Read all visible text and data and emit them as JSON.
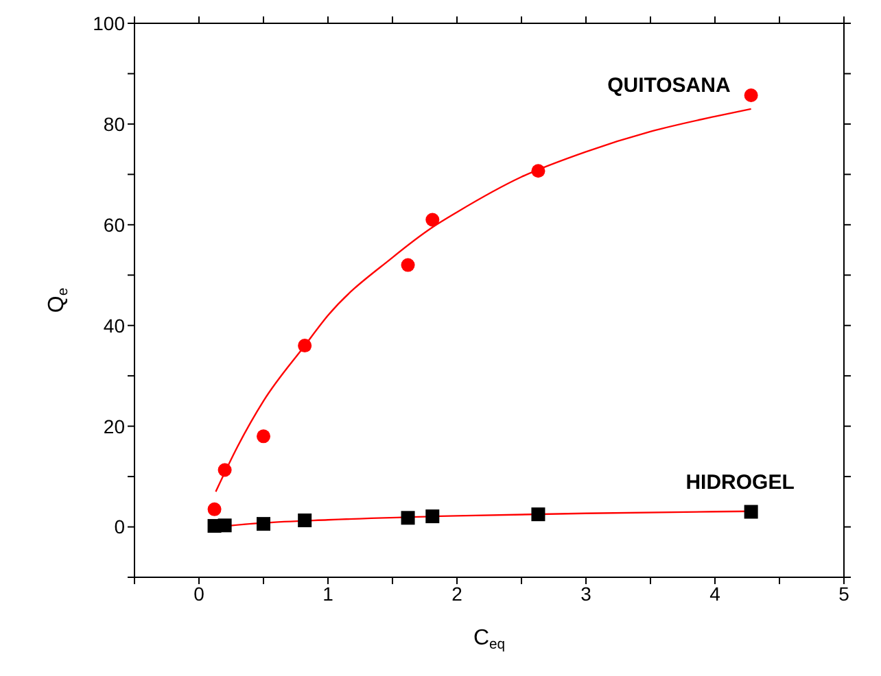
{
  "chart_data": {
    "type": "scatter",
    "xlabel": "C$_{eq}$",
    "ylabel": "Q$_{e}$",
    "xlim": [
      -0.5,
      5
    ],
    "xticks": [
      {
        "value": -0.5,
        "label": null
      },
      0,
      {
        "value": 0.5,
        "label": null
      },
      1,
      {
        "value": 1.5,
        "label": null
      },
      2,
      {
        "value": 2.5,
        "label": null
      },
      3,
      {
        "value": 3.5,
        "label": null
      },
      4,
      {
        "value": 4.5,
        "label": null
      },
      5
    ],
    "ylim": [
      -10,
      100
    ],
    "yticks": [
      {
        "value": -10,
        "label": null
      },
      0,
      {
        "value": 10,
        "label": null
      },
      20,
      {
        "value": 30,
        "label": null
      },
      40,
      {
        "value": 50,
        "label": null
      },
      60,
      {
        "value": 70,
        "label": null
      },
      80,
      {
        "value": 90,
        "label": null
      },
      100
    ],
    "legend": false,
    "series": [
      {
        "name": "QUITOSANA",
        "marker": "circle",
        "color": "#ff0000",
        "x": [
          0.12,
          0.2,
          0.5,
          0.82,
          1.62,
          1.81,
          2.63,
          4.28
        ],
        "values": [
          3.5,
          11.3,
          18,
          36,
          52,
          61,
          70.7,
          85.7
        ]
      },
      {
        "name": "HIDROGEL",
        "marker": "square",
        "color": "#000000",
        "x": [
          0.12,
          0.2,
          0.5,
          0.82,
          1.62,
          1.81,
          2.63,
          4.28
        ],
        "values": [
          0.2,
          0.3,
          0.6,
          1.3,
          1.8,
          2.1,
          2.5,
          3.0
        ]
      },
      {
        "type": "line",
        "marker": "none",
        "line_style": "solid",
        "color": "#ff0000",
        "x": [
          0.13,
          0.3,
          0.5,
          0.82,
          1,
          1.5,
          1.81,
          2,
          2.5,
          3,
          3.5,
          4,
          4.28
        ],
        "values": [
          7,
          16,
          25,
          36,
          42,
          53.5,
          59.5,
          62.5,
          69.5,
          74.5,
          78.5,
          81.5,
          83
        ]
      },
      {
        "type": "line",
        "marker": "none",
        "line_style": "solid",
        "color": "#ff0000",
        "x": [
          0.13,
          0.5,
          1,
          2,
          3,
          4.28
        ],
        "values": [
          0,
          0.8,
          1.4,
          2.2,
          2.7,
          3.1
        ]
      }
    ]
  }
}
